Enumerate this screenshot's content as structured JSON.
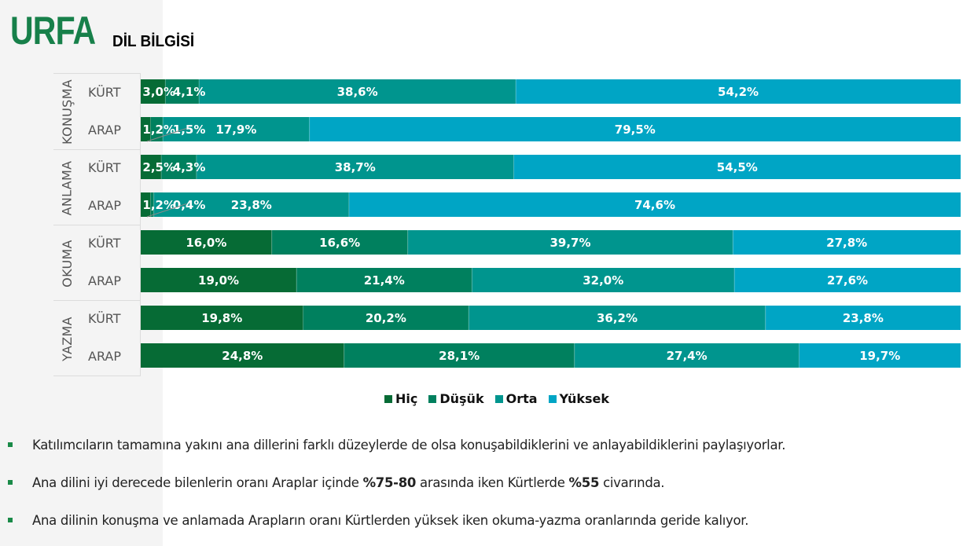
{
  "header": {
    "title": "URFA",
    "subtitle": "DİL BİLGİSİ"
  },
  "legend": [
    {
      "label": "Hiç",
      "color": "#066b35"
    },
    {
      "label": "Düşük",
      "color": "#00805e"
    },
    {
      "label": "Orta",
      "color": "#00958e"
    },
    {
      "label": "Yüksek",
      "color": "#00a5c5"
    }
  ],
  "chart_data": {
    "type": "bar",
    "orientation": "horizontal-stacked-100",
    "title": "URFA DİL BİLGİSİ",
    "xlabel": "",
    "ylabel": "",
    "xlim": [
      0,
      100
    ],
    "grid": false,
    "legend_position": "bottom",
    "groups": [
      "KONUŞMA",
      "ANLAMA",
      "OKUMA",
      "YAZMA"
    ],
    "categories": [
      {
        "group": "KONUŞMA",
        "label": "KÜRT"
      },
      {
        "group": "KONUŞMA",
        "label": "ARAP"
      },
      {
        "group": "ANLAMA",
        "label": "KÜRT"
      },
      {
        "group": "ANLAMA",
        "label": "ARAP"
      },
      {
        "group": "OKUMA",
        "label": "KÜRT"
      },
      {
        "group": "OKUMA",
        "label": "ARAP"
      },
      {
        "group": "YAZMA",
        "label": "KÜRT"
      },
      {
        "group": "YAZMA",
        "label": "ARAP"
      }
    ],
    "series": [
      {
        "name": "Hiç",
        "color": "#066b35",
        "values": [
          3.0,
          1.2,
          2.5,
          1.2,
          16.0,
          19.0,
          19.8,
          24.8
        ],
        "labels": [
          "3,0%",
          "1,2%",
          "2,5%",
          "1,2%",
          "16,0%",
          "19,0%",
          "19,8%",
          "24,8%"
        ]
      },
      {
        "name": "Düşük",
        "color": "#00805e",
        "values": [
          4.1,
          1.5,
          4.3,
          0.4,
          16.6,
          21.4,
          20.2,
          28.1
        ],
        "labels": [
          "4,1%",
          "1,5%",
          "4,3%",
          "0,4%",
          "16,6%",
          "21,4%",
          "20,2%",
          "28,1%"
        ]
      },
      {
        "name": "Orta",
        "color": "#00958e",
        "values": [
          38.6,
          17.9,
          38.7,
          23.8,
          39.7,
          32.0,
          36.2,
          27.4
        ],
        "labels": [
          "38,6%",
          "17,9%",
          "38,7%",
          "23,8%",
          "39,7%",
          "32,0%",
          "36,2%",
          "27,4%"
        ]
      },
      {
        "name": "Yüksek",
        "color": "#00a5c5",
        "values": [
          54.2,
          79.5,
          54.5,
          74.6,
          27.8,
          27.6,
          23.8,
          19.7
        ],
        "labels": [
          "54,2%",
          "79,5%",
          "54,5%",
          "74,6%",
          "27,8%",
          "27,6%",
          "23,8%",
          "19,7%"
        ]
      }
    ]
  },
  "bullets": [
    {
      "parts": [
        {
          "text": "Katılımcıların tamamına yakını ana dillerini farklı düzeylerde de olsa konuşabildiklerini ve anlayabildiklerini paylaşıyorlar.",
          "bold": false
        }
      ]
    },
    {
      "parts": [
        {
          "text": "Ana dilini iyi derecede bilenlerin oranı Araplar içinde ",
          "bold": false
        },
        {
          "text": "%75-80",
          "bold": true
        },
        {
          "text": " arasında iken Kürtlerde ",
          "bold": false
        },
        {
          "text": "%55",
          "bold": true
        },
        {
          "text": " civarında.",
          "bold": false
        }
      ]
    },
    {
      "parts": [
        {
          "text": "Ana dilinin konuşma ve anlamada Arapların oranı Kürtlerden yüksek iken okuma-yazma oranlarında geride kalıyor.",
          "bold": false
        }
      ]
    }
  ]
}
